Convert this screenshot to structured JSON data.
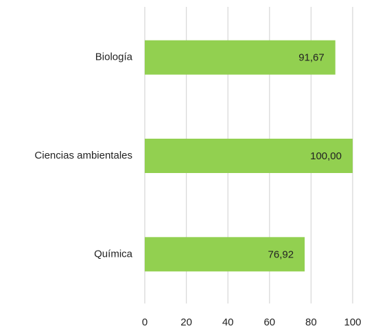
{
  "chart_data": {
    "type": "bar",
    "orientation": "horizontal",
    "categories": [
      "Biología",
      "Ciencias ambientales",
      "Química"
    ],
    "values": [
      91.67,
      100,
      76.92
    ],
    "value_labels": [
      "91,67",
      "100,00",
      "76,92"
    ],
    "color": "#92d050",
    "xlim": [
      0,
      100
    ],
    "xticks": [
      0,
      20,
      40,
      60,
      80,
      100
    ],
    "grid": true
  }
}
